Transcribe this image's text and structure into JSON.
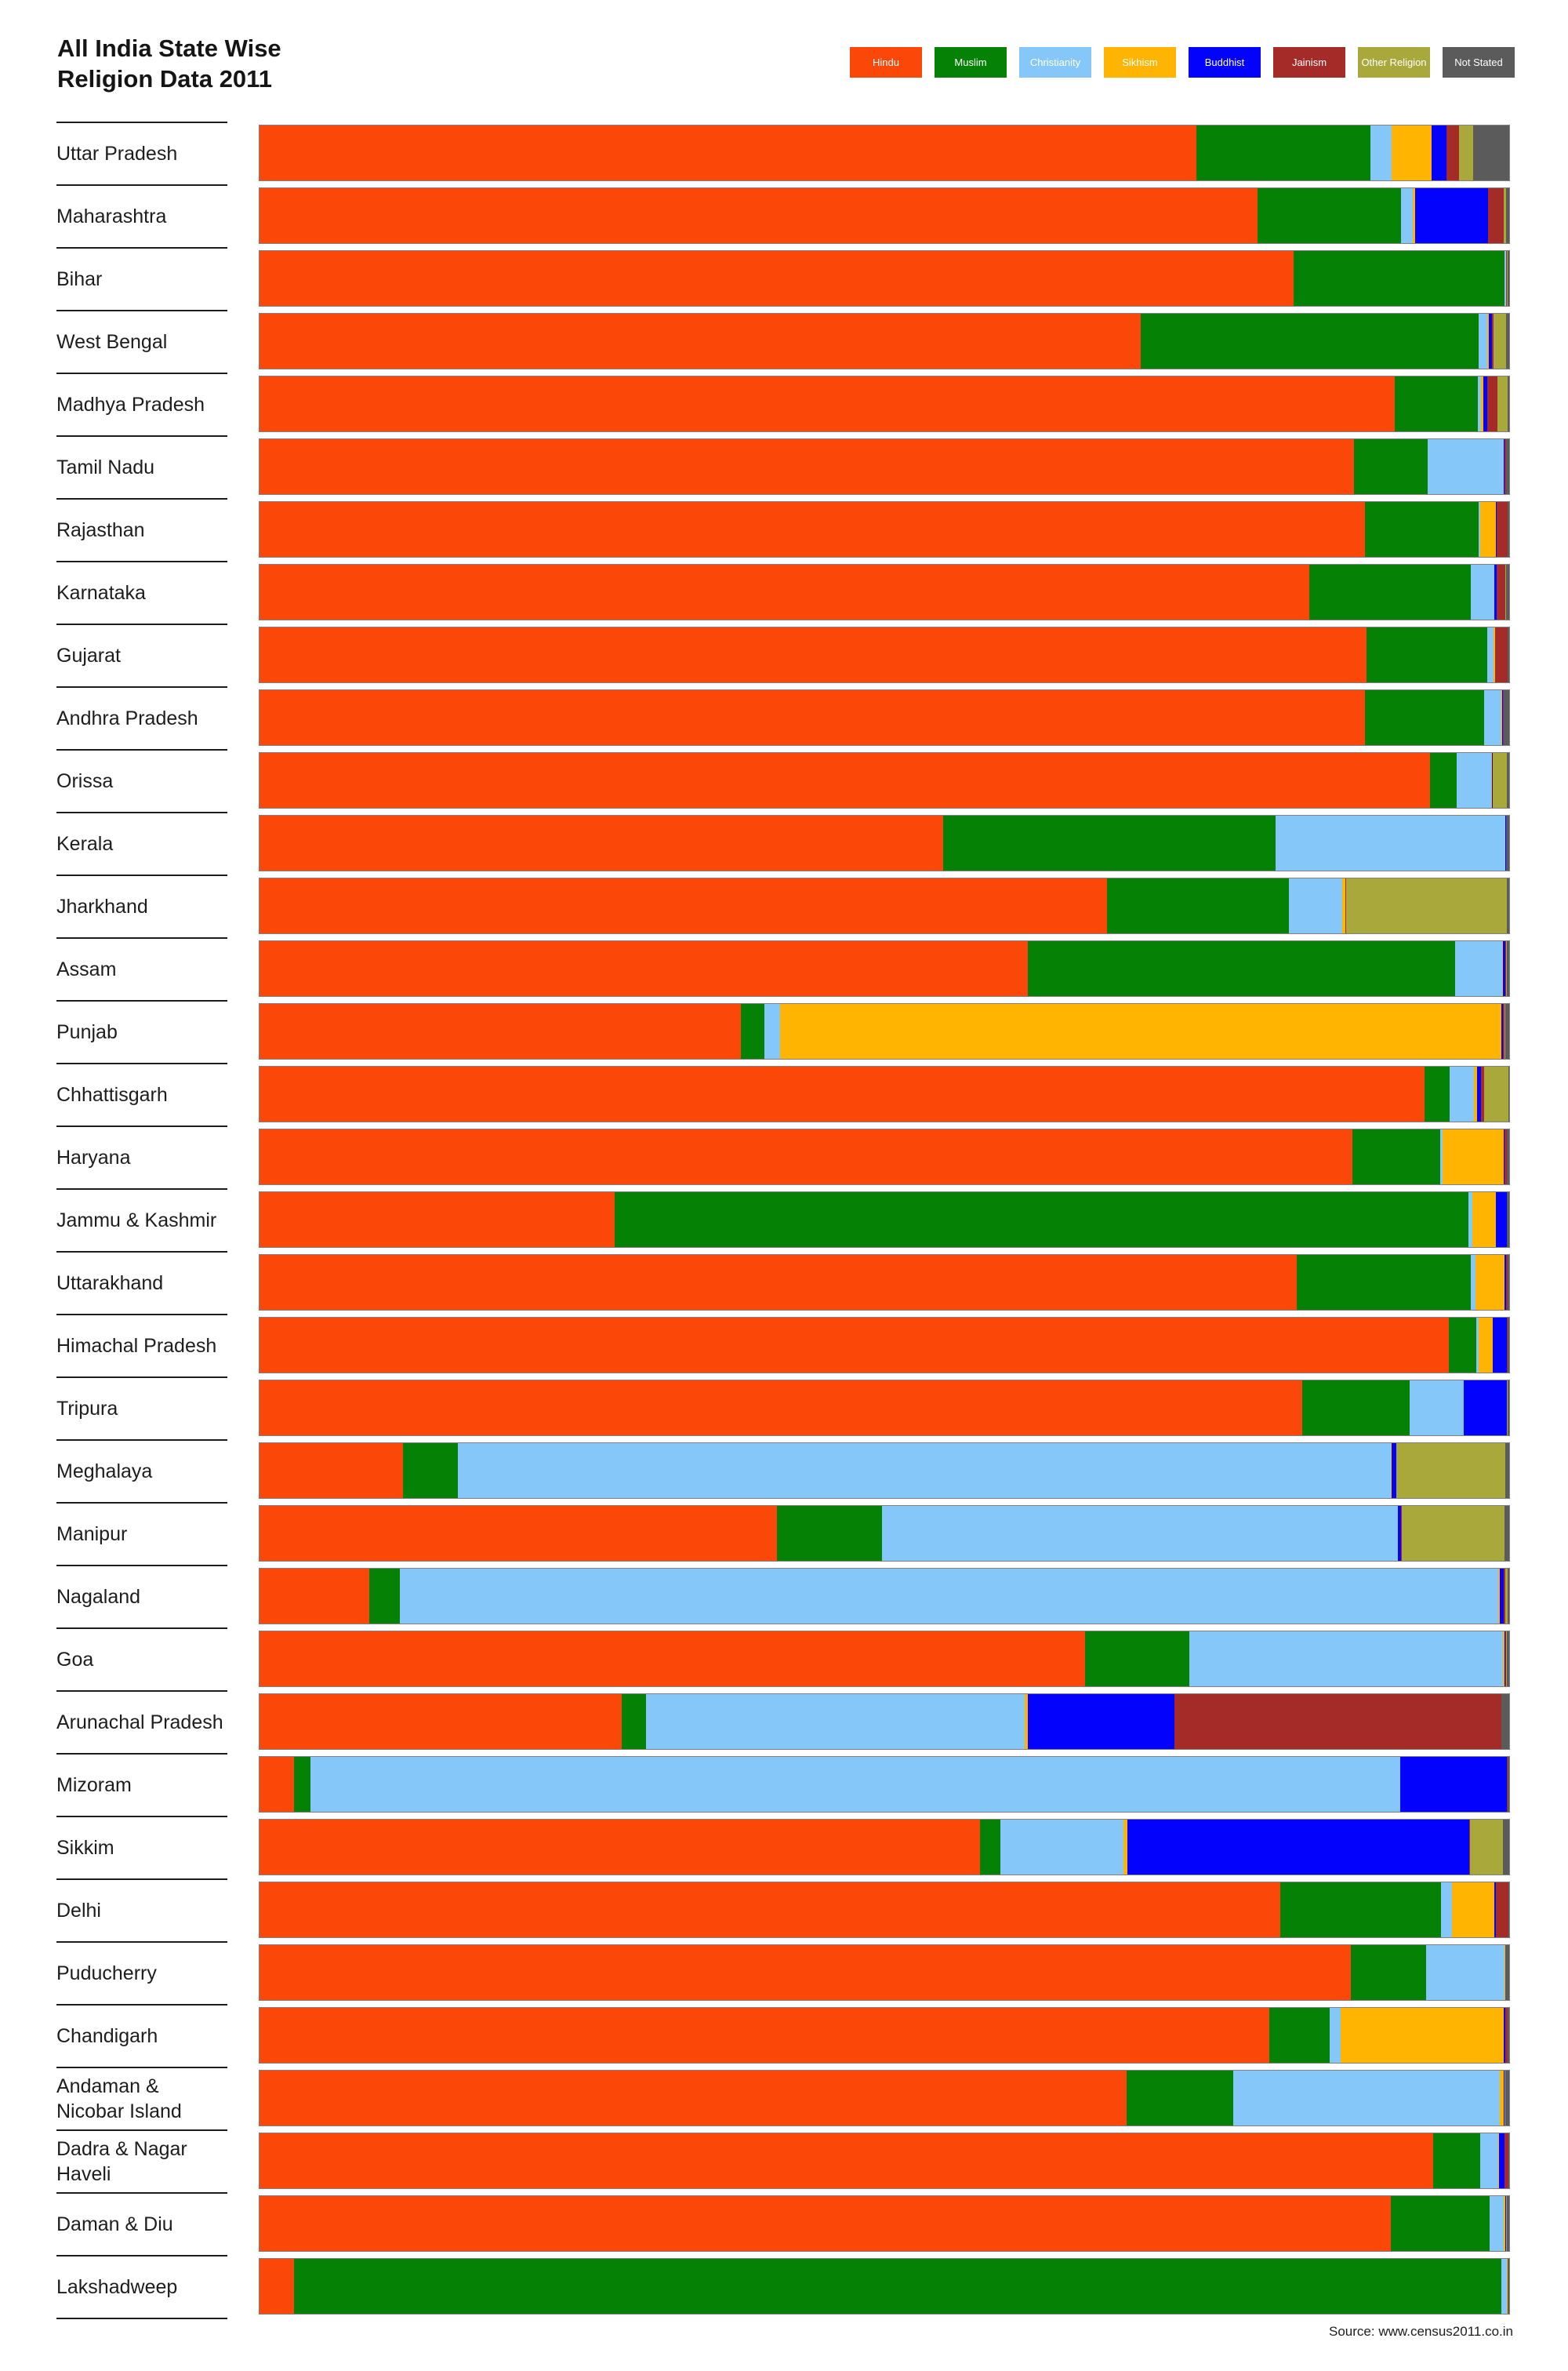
{
  "title": {
    "line1": "All India State Wise",
    "line2": "Religion Data 2011"
  },
  "source": "Source: www.census2011.co.in",
  "chart_data": {
    "type": "bar",
    "orientation": "horizontal",
    "stacked": true,
    "unit": "percent of state population",
    "xlim": [
      0,
      100
    ],
    "grid": false,
    "legend_position": "top-right",
    "title": "All India State Wise Religion Data 2011",
    "categories": [
      "Hindu",
      "Muslim",
      "Christianity",
      "Sikhism",
      "Buddhist",
      "Jainism",
      "Other Religion",
      "Not Stated"
    ],
    "colors": [
      "#FB4708",
      "#058205",
      "#85C7F9",
      "#FFB402",
      "#0202FD",
      "#A52B28",
      "#A9A93B",
      "#5B5B5B"
    ],
    "states": [
      {
        "name": "Uttar Pradesh",
        "values": [
          75.1,
          14.0,
          1.7,
          3.2,
          1.2,
          1.0,
          1.1,
          2.9
        ]
      },
      {
        "name": "Maharashtra",
        "values": [
          79.8,
          11.5,
          0.96,
          0.2,
          5.8,
          1.25,
          0.2,
          0.25
        ]
      },
      {
        "name": "Bihar",
        "values": [
          82.7,
          16.9,
          0.12,
          0.02,
          0.02,
          0.02,
          0.05,
          0.15
        ]
      },
      {
        "name": "West Bengal",
        "values": [
          70.5,
          27.0,
          0.72,
          0.07,
          0.31,
          0.07,
          1.03,
          0.25
        ]
      },
      {
        "name": "Madhya Pradesh",
        "values": [
          90.9,
          6.6,
          0.29,
          0.21,
          0.3,
          0.78,
          0.83,
          0.13
        ]
      },
      {
        "name": "Tamil Nadu",
        "values": [
          87.6,
          5.86,
          6.12,
          0.02,
          0.02,
          0.12,
          0.01,
          0.26
        ]
      },
      {
        "name": "Rajasthan",
        "values": [
          88.5,
          9.1,
          0.14,
          1.27,
          0.02,
          0.91,
          0.01,
          0.1
        ]
      },
      {
        "name": "Karnataka",
        "values": [
          84.0,
          12.9,
          1.87,
          0.05,
          0.16,
          0.72,
          0.02,
          0.27
        ]
      },
      {
        "name": "Gujarat",
        "values": [
          88.6,
          9.65,
          0.52,
          0.1,
          0.05,
          0.96,
          0.03,
          0.11
        ]
      },
      {
        "name": "Andhra Pradesh",
        "values": [
          88.5,
          9.55,
          1.34,
          0.05,
          0.07,
          0.06,
          0.01,
          0.45
        ]
      },
      {
        "name": "Orissa",
        "values": [
          93.6,
          2.17,
          2.77,
          0.05,
          0.03,
          0.02,
          1.14,
          0.18
        ]
      },
      {
        "name": "Kerala",
        "values": [
          54.7,
          26.6,
          18.38,
          0.01,
          0.01,
          0.01,
          0.01,
          0.26
        ]
      },
      {
        "name": "Jharkhand",
        "values": [
          67.8,
          14.5,
          4.3,
          0.22,
          0.03,
          0.05,
          12.84,
          0.21
        ]
      },
      {
        "name": "Assam",
        "values": [
          61.5,
          34.2,
          3.74,
          0.07,
          0.18,
          0.08,
          0.09,
          0.16
        ]
      },
      {
        "name": "Punjab",
        "values": [
          38.5,
          1.93,
          1.26,
          57.7,
          0.12,
          0.16,
          0.04,
          0.32
        ]
      },
      {
        "name": "Chhattisgarh",
        "values": [
          93.3,
          2.02,
          1.92,
          0.27,
          0.28,
          0.24,
          1.94,
          0.09
        ]
      },
      {
        "name": "Haryana",
        "values": [
          87.5,
          7.03,
          0.2,
          4.91,
          0.03,
          0.21,
          0.01,
          0.17
        ]
      },
      {
        "name": "Jammu & Kashmir",
        "values": [
          28.4,
          68.3,
          0.28,
          1.87,
          0.9,
          0.02,
          0.01,
          0.16
        ]
      },
      {
        "name": "Uttarakhand",
        "values": [
          83.0,
          13.95,
          0.37,
          2.34,
          0.15,
          0.09,
          0.01,
          0.12
        ]
      },
      {
        "name": "Himachal Pradesh",
        "values": [
          95.2,
          2.18,
          0.18,
          1.16,
          1.15,
          0.03,
          0.01,
          0.12
        ]
      },
      {
        "name": "Tripura",
        "values": [
          83.4,
          8.6,
          4.35,
          0.03,
          3.41,
          0.02,
          0.04,
          0.14
        ]
      },
      {
        "name": "Meghalaya",
        "values": [
          11.5,
          4.4,
          74.6,
          0.1,
          0.33,
          0.02,
          8.71,
          0.32
        ]
      },
      {
        "name": "Manipur",
        "values": [
          41.4,
          8.4,
          41.3,
          0.05,
          0.25,
          0.06,
          8.19,
          0.38
        ]
      },
      {
        "name": "Nagaland",
        "values": [
          8.75,
          2.47,
          87.9,
          0.1,
          0.34,
          0.13,
          0.16,
          0.12
        ]
      },
      {
        "name": "Goa",
        "values": [
          66.1,
          8.33,
          25.1,
          0.1,
          0.08,
          0.08,
          0.02,
          0.21
        ]
      },
      {
        "name": "Arunachal Pradesh",
        "values": [
          29.0,
          1.95,
          30.3,
          0.24,
          11.77,
          26.2,
          0.0,
          0.6
        ]
      },
      {
        "name": "Mizoram",
        "values": [
          2.75,
          1.35,
          87.2,
          0.03,
          8.51,
          0.03,
          0.0,
          0.15
        ]
      },
      {
        "name": "Sikkim",
        "values": [
          57.8,
          1.62,
          9.91,
          0.31,
          27.4,
          0.05,
          2.67,
          0.5
        ]
      },
      {
        "name": "Delhi",
        "values": [
          81.7,
          12.86,
          0.87,
          3.4,
          0.11,
          0.99,
          0.01,
          0.08
        ]
      },
      {
        "name": "Puducherry",
        "values": [
          87.3,
          6.05,
          6.29,
          0.01,
          0.01,
          0.02,
          0.01,
          0.3
        ]
      },
      {
        "name": "Chandigarh",
        "values": [
          80.8,
          4.87,
          0.83,
          13.11,
          0.11,
          0.19,
          0.01,
          0.1
        ]
      },
      {
        "name": "Andaman & Nicobar Island",
        "label": "Andaman &\nNicobar Island",
        "values": [
          69.4,
          8.51,
          21.3,
          0.33,
          0.08,
          0.01,
          0.04,
          0.31
        ]
      },
      {
        "name": "Dadra & Nagar Haveli",
        "values": [
          93.9,
          3.76,
          1.49,
          0.06,
          0.42,
          0.28,
          0.02,
          0.07
        ]
      },
      {
        "name": "Daman & Diu",
        "values": [
          90.5,
          7.92,
          1.16,
          0.07,
          0.06,
          0.06,
          0.01,
          0.21
        ]
      },
      {
        "name": "Lakshadweep",
        "values": [
          2.77,
          96.6,
          0.49,
          0.01,
          0.01,
          0.02,
          0.01,
          0.11
        ]
      }
    ]
  }
}
